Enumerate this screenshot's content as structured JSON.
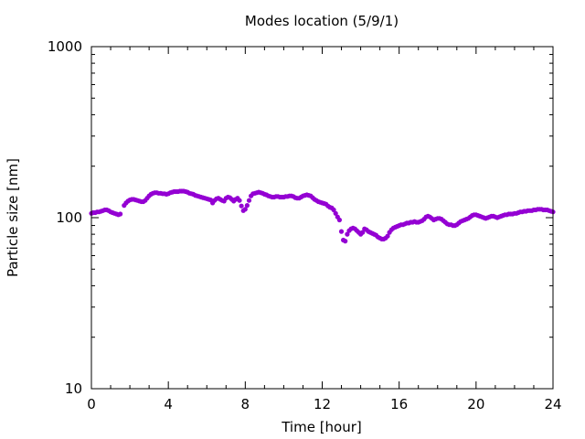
{
  "chart_data": {
    "type": "scatter",
    "title": "Modes location (5/9/1)",
    "xlabel": "Time [hour]",
    "ylabel": "Particle size [nm]",
    "x_scale": "linear",
    "y_scale": "log",
    "xlim": [
      0,
      24
    ],
    "ylim": [
      10,
      1000
    ],
    "x_ticks": [
      0,
      4,
      8,
      12,
      16,
      20,
      24
    ],
    "x_tick_labels": [
      "0",
      "4",
      "8",
      "12",
      "16",
      "20",
      "24"
    ],
    "y_ticks": [
      10,
      100,
      1000
    ],
    "y_tick_labels": [
      "10",
      "100",
      "1000"
    ],
    "grid": false,
    "legend": "none",
    "marker_color": "#9400D3",
    "series": [
      {
        "x": [
          0.0,
          0.1,
          0.2,
          0.3,
          0.4,
          0.5,
          0.6,
          0.7,
          0.8,
          0.9,
          1.0,
          1.1,
          1.2,
          1.3,
          1.4,
          1.5,
          1.7,
          1.8,
          1.9,
          2.0,
          2.1,
          2.2,
          2.3,
          2.4,
          2.5,
          2.6,
          2.7,
          2.8,
          2.9,
          3.0,
          3.1,
          3.2,
          3.3,
          3.4,
          3.5,
          3.6,
          3.7,
          3.8,
          3.9,
          4.0,
          4.1,
          4.2,
          4.3,
          4.4,
          4.5,
          4.6,
          4.7,
          4.8,
          4.9,
          5.0,
          5.1,
          5.2,
          5.3,
          5.4,
          5.5,
          5.6,
          5.7,
          5.8,
          5.9,
          6.0,
          6.1,
          6.2,
          6.3,
          6.4,
          6.5,
          6.6,
          6.7,
          6.8,
          6.9,
          7.0,
          7.1,
          7.2,
          7.3,
          7.4,
          7.5,
          7.6,
          7.7,
          7.8,
          7.9,
          8.0,
          8.1,
          8.2,
          8.3,
          8.4,
          8.5,
          8.6,
          8.7,
          8.8,
          8.9,
          9.0,
          9.1,
          9.2,
          9.3,
          9.4,
          9.5,
          9.6,
          9.7,
          9.8,
          9.9,
          10.0,
          10.1,
          10.2,
          10.3,
          10.4,
          10.5,
          10.6,
          10.7,
          10.8,
          10.9,
          11.0,
          11.1,
          11.2,
          11.3,
          11.4,
          11.5,
          11.6,
          11.7,
          11.8,
          11.9,
          12.0,
          12.1,
          12.2,
          12.3,
          12.4,
          12.5,
          12.6,
          12.7,
          12.8,
          12.9,
          13.0,
          13.1,
          13.2,
          13.3,
          13.4,
          13.5,
          13.6,
          13.7,
          13.8,
          13.9,
          14.0,
          14.1,
          14.2,
          14.3,
          14.4,
          14.5,
          14.6,
          14.7,
          14.8,
          14.9,
          15.0,
          15.1,
          15.2,
          15.3,
          15.4,
          15.5,
          15.6,
          15.7,
          15.8,
          15.9,
          16.0,
          16.1,
          16.2,
          16.3,
          16.4,
          16.5,
          16.6,
          16.7,
          16.8,
          16.9,
          17.0,
          17.1,
          17.2,
          17.3,
          17.4,
          17.5,
          17.6,
          17.7,
          17.8,
          17.9,
          18.0,
          18.1,
          18.2,
          18.3,
          18.4,
          18.5,
          18.6,
          18.7,
          18.8,
          18.9,
          19.0,
          19.1,
          19.2,
          19.3,
          19.4,
          19.5,
          19.6,
          19.7,
          19.8,
          19.9,
          20.0,
          20.1,
          20.2,
          20.3,
          20.4,
          20.5,
          20.6,
          20.7,
          20.8,
          20.9,
          21.0,
          21.1,
          21.2,
          21.3,
          21.4,
          21.5,
          21.6,
          21.7,
          21.8,
          21.9,
          22.0,
          22.1,
          22.2,
          22.3,
          22.4,
          22.5,
          22.6,
          22.7,
          22.8,
          22.9,
          23.0,
          23.1,
          23.2,
          23.3,
          23.4,
          23.5,
          23.6,
          23.7,
          23.8,
          23.9,
          24.0
        ],
        "y": [
          106,
          107,
          107,
          108,
          108,
          109,
          110,
          111,
          111,
          110,
          108,
          107,
          106,
          105,
          104,
          105,
          118,
          122,
          125,
          127,
          128,
          128,
          127,
          126,
          125,
          124,
          124,
          126,
          130,
          134,
          137,
          139,
          140,
          140,
          139,
          139,
          138,
          138,
          137,
          138,
          140,
          141,
          142,
          142,
          142,
          143,
          143,
          143,
          142,
          141,
          139,
          138,
          137,
          135,
          134,
          133,
          132,
          131,
          130,
          129,
          128,
          127,
          122,
          126,
          129,
          130,
          128,
          126,
          125,
          130,
          132,
          131,
          128,
          125,
          128,
          130,
          126,
          117,
          110,
          112,
          118,
          126,
          134,
          138,
          139,
          140,
          141,
          140,
          139,
          137,
          136,
          134,
          133,
          132,
          132,
          133,
          133,
          132,
          132,
          132,
          133,
          133,
          134,
          134,
          133,
          131,
          130,
          130,
          132,
          134,
          135,
          136,
          135,
          134,
          131,
          128,
          126,
          124,
          123,
          122,
          121,
          120,
          117,
          115,
          114,
          111,
          106,
          101,
          97,
          83,
          74,
          73,
          80,
          84,
          86,
          87,
          86,
          84,
          82,
          80,
          82,
          86,
          85,
          83,
          82,
          81,
          80,
          79,
          77,
          76,
          75,
          75,
          76,
          78,
          82,
          85,
          87,
          88,
          89,
          90,
          91,
          91,
          92,
          93,
          93,
          94,
          94,
          95,
          94,
          94,
          95,
          96,
          98,
          101,
          102,
          101,
          99,
          97,
          98,
          99,
          99,
          98,
          96,
          94,
          92,
          91,
          91,
          90,
          90,
          91,
          93,
          95,
          96,
          97,
          98,
          99,
          101,
          103,
          104,
          104,
          103,
          102,
          101,
          100,
          99,
          100,
          101,
          102,
          102,
          101,
          100,
          101,
          102,
          103,
          104,
          104,
          105,
          105,
          105,
          106,
          106,
          107,
          108,
          108,
          109,
          109,
          110,
          110,
          110,
          111,
          111,
          112,
          112,
          112,
          111,
          111,
          111,
          110,
          109,
          108
        ]
      }
    ]
  }
}
